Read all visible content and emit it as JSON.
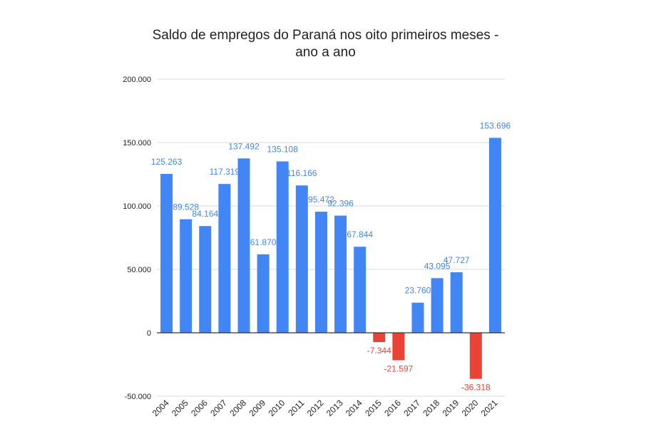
{
  "chart_data": {
    "type": "bar",
    "title_lines": [
      "Saldo de empregos do Paraná nos oito primeiros meses -",
      "ano a ano"
    ],
    "xlabel": "",
    "ylabel": "",
    "ylim": [
      -50000,
      200000
    ],
    "yticks": [
      200000,
      150000,
      100000,
      50000,
      0,
      -50000
    ],
    "ytick_labels": [
      "200.000",
      "150.000",
      "100.000",
      "50.000",
      "0",
      "-50.000"
    ],
    "grid": true,
    "legend": "none",
    "categories": [
      "2004",
      "2005",
      "2006",
      "2007",
      "2008",
      "2009",
      "2010",
      "2011",
      "2012",
      "2013",
      "2014",
      "2015",
      "2016",
      "2017",
      "2018",
      "2019",
      "2020",
      "2021"
    ],
    "values": [
      125263,
      89528,
      84164,
      117319,
      137492,
      61870,
      135108,
      116166,
      95472,
      92396,
      67844,
      -7344,
      -21597,
      23760,
      43095,
      47727,
      -36318,
      153696
    ],
    "value_labels": [
      "125.263",
      "89.528",
      "84.164",
      "117.319",
      "137.492",
      "61.870",
      "135.108",
      "116.166",
      "95.472",
      "92.396",
      "67.844",
      "-7.344",
      "-21.597",
      "23.760",
      "43.095",
      "47.727",
      "-36.318",
      "153.696"
    ],
    "colors": {
      "positive": "#4285f4",
      "negative": "#ea4335",
      "grid": "#d9d9d9",
      "axis": "#333333",
      "tick_text": "#222222"
    }
  }
}
